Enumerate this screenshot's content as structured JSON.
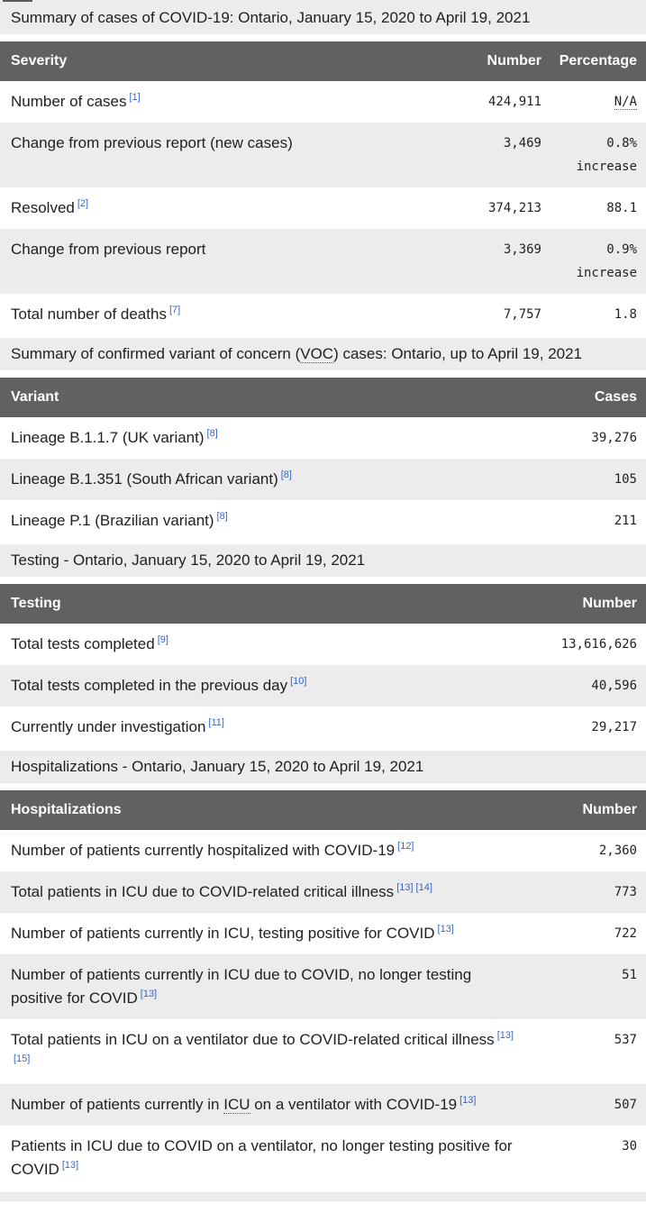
{
  "colors": {
    "link": "#3366cc",
    "header_bg": "#616161",
    "header_text": "#ffffff",
    "stripe_bg": "#ececec",
    "caption_bg": "#ececec",
    "text": "#202122"
  },
  "tables": {
    "summary": {
      "caption": "Summary of cases of COVID-19: Ontario, January 15, 2020 to April 19, 2021",
      "headers": {
        "severity": "Severity",
        "number": "Number",
        "percentage": "Percentage"
      },
      "rows": [
        {
          "label": "Number of cases",
          "ref1": "[1]",
          "number": "424,911",
          "pct": "N/A"
        },
        {
          "label": "Change from previous report (new cases)",
          "number": "3,469",
          "pct": "0.8%",
          "pct_note": "increase"
        },
        {
          "label": "Resolved",
          "ref1": "[2]",
          "number": "374,213",
          "pct": "88.1"
        },
        {
          "label": "Change from previous report",
          "number": "3,369",
          "pct": "0.9%",
          "pct_note": "increase"
        },
        {
          "label": "Total number of deaths",
          "ref1": "[7]",
          "number": "7,757",
          "pct": "1.8"
        }
      ]
    },
    "voc": {
      "caption_pre": "Summary of confirmed variant of concern (",
      "caption_abbr": "VOC",
      "caption_post": ") cases: Ontario, up to April 19, 2021",
      "headers": {
        "variant": "Variant",
        "cases": "Cases"
      },
      "rows": [
        {
          "label": "Lineage B.1.1.7 (UK variant)",
          "ref1": "[8]",
          "number": "39,276"
        },
        {
          "label": "Lineage B.1.351 (South African variant)",
          "ref1": "[8]",
          "number": "105"
        },
        {
          "label": "Lineage P.1 (Brazilian variant)",
          "ref1": "[8]",
          "number": "211"
        }
      ]
    },
    "testing": {
      "caption": "Testing - Ontario, January 15, 2020 to April 19, 2021",
      "headers": {
        "testing": "Testing",
        "number": "Number"
      },
      "rows": [
        {
          "label": "Total tests completed",
          "ref1": "[9]",
          "number": "13,616,626"
        },
        {
          "label": "Total tests completed in the previous day",
          "ref1": "[10]",
          "number": "40,596"
        },
        {
          "label": "Currently under investigation",
          "ref1": "[11]",
          "number": "29,217"
        }
      ]
    },
    "hospitalizations": {
      "caption": "Hospitalizations - Ontario, January 15, 2020 to April 19, 2021",
      "headers": {
        "hospitalizations": "Hospitalizations",
        "number": "Number"
      },
      "rows": [
        {
          "label": "Number of patients currently hospitalized with COVID-19",
          "ref1": "[12]",
          "number": "2,360"
        },
        {
          "label": "Total patients in ICU due to COVID-related critical illness",
          "ref1": "[13]",
          "ref2": "[14]",
          "number": "773"
        },
        {
          "label": "Number of patients currently in ICU, testing positive for COVID",
          "ref1": "[13]",
          "number": "722"
        },
        {
          "label": "Number of patients currently in ICU due to COVID, no longer testing positive for COVID",
          "ref1": "[13]",
          "number": "51"
        },
        {
          "label": "Total patients in ICU on a ventilator due to COVID-related critical illness",
          "ref1": "[13]",
          "ref2": "[15]",
          "number": "537"
        },
        {
          "label_pre": "Number of patients currently in ",
          "label_abbr": "ICU",
          "label_post": " on a ventilator with COVID-19",
          "ref1": "[13]",
          "number": "507"
        },
        {
          "label": "Patients in ICU due to COVID on a ventilator, no longer testing positive for COVID",
          "ref1": "[13]",
          "number": "30"
        }
      ]
    }
  }
}
